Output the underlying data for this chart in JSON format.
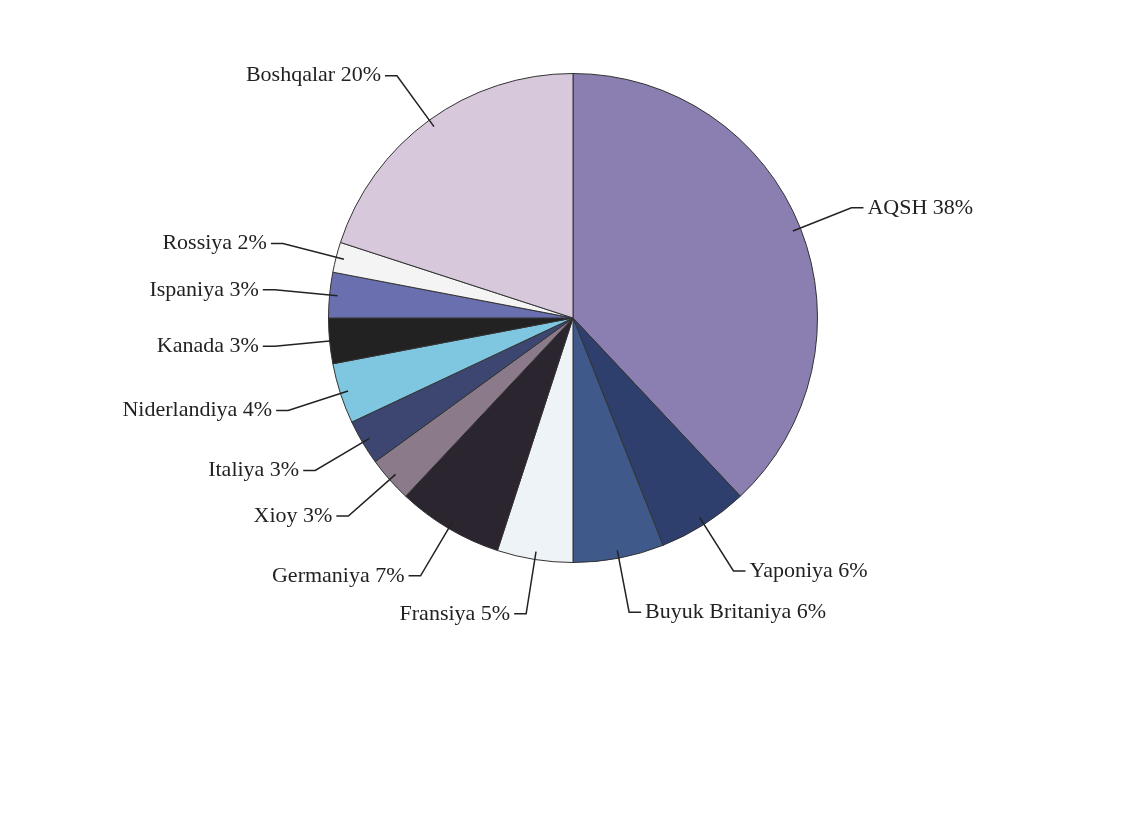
{
  "chart_data": {
    "type": "pie",
    "categories": [
      "AQSH",
      "Yaponiya",
      "Buyuk Britaniya",
      "Fransiya",
      "Germaniya",
      "Xioy",
      "Italiya",
      "Niderlandiya",
      "Kanada",
      "Ispaniya",
      "Rossiya",
      "Boshqalar"
    ],
    "values": [
      38,
      6,
      6,
      5,
      7,
      3,
      3,
      4,
      3,
      3,
      2,
      20
    ],
    "value_labels": [
      "38%",
      "6%",
      "6%",
      "5%",
      "7%",
      "3%",
      "3%",
      "4%",
      "3%",
      "3%",
      "2%",
      "20%"
    ],
    "colors": [
      "#8a7fb0",
      "#2e3f6e",
      "#3f5a8a",
      "#eef3f7",
      "#2b2530",
      "#8a7a8a",
      "#3d4670",
      "#7fc7e0",
      "#222222",
      "#6a6fb0",
      "#f4f4f4",
      "#d8c8dc"
    ]
  }
}
